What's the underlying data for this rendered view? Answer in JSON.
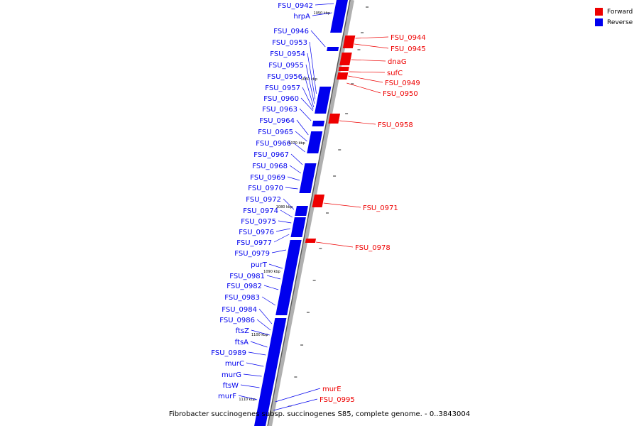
{
  "caption": "Fibrobacter succinogenes subsp. succinogenes S85, complete genome. - 0..3843004",
  "colors": {
    "forward": "#ee0000",
    "reverse": "#0000ee",
    "backbone": "#b0b0b0"
  },
  "legend": [
    {
      "label": "Forward",
      "color": "#ee0000"
    },
    {
      "label": "Reverse",
      "color": "#0000ee"
    }
  ],
  "scale_labels": [
    "1050 kbp",
    "1060 kbp",
    "1070 kbp",
    "1080 kbp",
    "1090 kbp",
    "1100 kbp",
    "1110 kbp"
  ],
  "reverse_genes": [
    "FSU_0942",
    "hrpA",
    "FSU_0946",
    "FSU_0953",
    "FSU_0954",
    "FSU_0955",
    "FSU_0956",
    "FSU_0957",
    "FSU_0960",
    "FSU_0963",
    "FSU_0964",
    "FSU_0965",
    "FSU_0966",
    "FSU_0967",
    "FSU_0968",
    "FSU_0969",
    "FSU_0970",
    "FSU_0972",
    "FSU_0974",
    "FSU_0975",
    "FSU_0976",
    "FSU_0977",
    "FSU_0979",
    "purT",
    "FSU_0981",
    "FSU_0982",
    "FSU_0983",
    "FSU_0984",
    "FSU_0986",
    "ftsZ",
    "ftsA",
    "FSU_0989",
    "murC",
    "murG",
    "ftsW",
    "murF"
  ],
  "forward_genes": [
    "FSU_0944",
    "FSU_0945",
    "dnaG",
    "sufC",
    "FSU_0949",
    "FSU_0950",
    "FSU_0958",
    "FSU_0971",
    "FSU_0978",
    "murE",
    "FSU_0995"
  ]
}
